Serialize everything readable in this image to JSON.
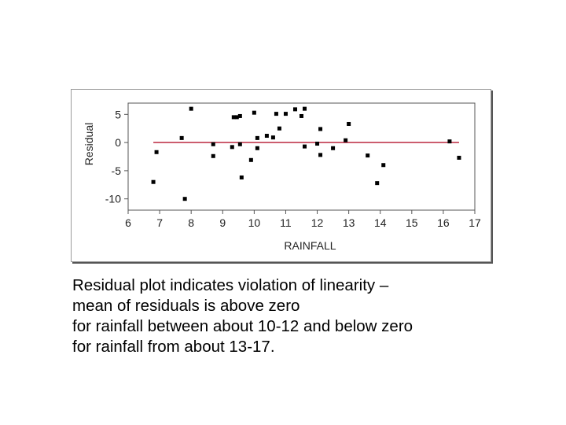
{
  "chart_data": {
    "type": "scatter",
    "xlabel": "RAINFALL",
    "ylabel": "Residual",
    "xlim": [
      6,
      17
    ],
    "ylim": [
      -10,
      5
    ],
    "xticks": [
      6,
      7,
      8,
      9,
      10,
      11,
      12,
      13,
      14,
      15,
      16,
      17
    ],
    "yticks": [
      5,
      0,
      -5,
      -10
    ],
    "reference_line": {
      "y": 0,
      "color": "#c0394f"
    },
    "point_color": "#000000",
    "points": [
      {
        "x": 6.8,
        "y": -7
      },
      {
        "x": 6.9,
        "y": -1.7
      },
      {
        "x": 7.7,
        "y": 0.8
      },
      {
        "x": 7.8,
        "y": -10
      },
      {
        "x": 8.0,
        "y": 6
      },
      {
        "x": 8.7,
        "y": -0.3
      },
      {
        "x": 8.7,
        "y": -2.4
      },
      {
        "x": 9.3,
        "y": -0.8
      },
      {
        "x": 9.35,
        "y": 4.5
      },
      {
        "x": 9.45,
        "y": 4.5
      },
      {
        "x": 9.55,
        "y": -0.3
      },
      {
        "x": 9.55,
        "y": 4.7
      },
      {
        "x": 9.6,
        "y": -6.2
      },
      {
        "x": 9.9,
        "y": -3.1
      },
      {
        "x": 10.0,
        "y": 5.3
      },
      {
        "x": 10.1,
        "y": 0.8
      },
      {
        "x": 10.1,
        "y": -1
      },
      {
        "x": 10.4,
        "y": 1.2
      },
      {
        "x": 10.6,
        "y": 0.9
      },
      {
        "x": 10.7,
        "y": 5.1
      },
      {
        "x": 10.8,
        "y": 2.5
      },
      {
        "x": 11.0,
        "y": 5.1
      },
      {
        "x": 11.3,
        "y": 5.9
      },
      {
        "x": 11.5,
        "y": 4.7
      },
      {
        "x": 11.6,
        "y": 6
      },
      {
        "x": 11.6,
        "y": -0.7
      },
      {
        "x": 12.0,
        "y": -0.2
      },
      {
        "x": 12.1,
        "y": 2.4
      },
      {
        "x": 12.1,
        "y": -2.2
      },
      {
        "x": 12.5,
        "y": -1
      },
      {
        "x": 12.9,
        "y": 0.4
      },
      {
        "x": 13.0,
        "y": 3.3
      },
      {
        "x": 13.6,
        "y": -2.3
      },
      {
        "x": 13.9,
        "y": -7.2
      },
      {
        "x": 14.1,
        "y": -4
      },
      {
        "x": 16.2,
        "y": 0.2
      },
      {
        "x": 16.5,
        "y": -2.7
      }
    ]
  },
  "caption": {
    "line1": "Residual plot indicates violation of linearity –",
    "line2": "mean of residuals is above zero",
    "line3": "for rainfall between about 10-12 and below zero",
    "line4": "for rainfall from about 13-17."
  }
}
